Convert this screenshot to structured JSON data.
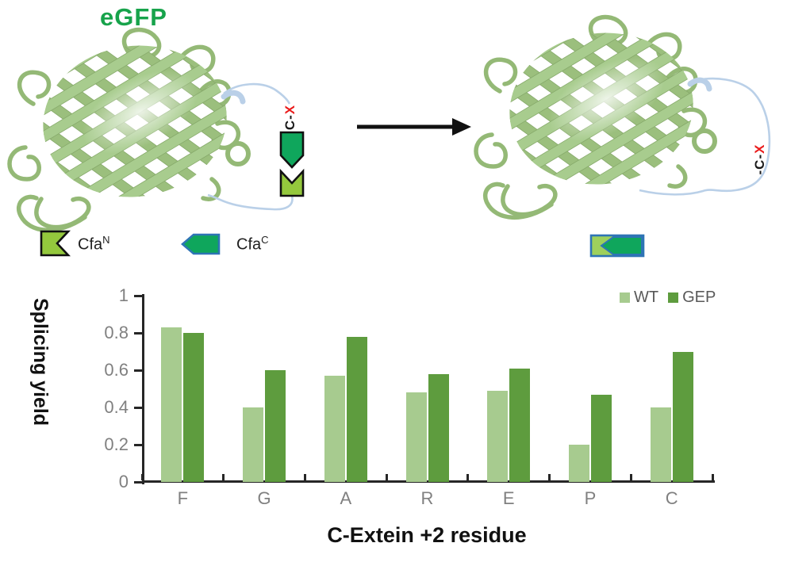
{
  "scheme": {
    "egfp_label": "eGFP",
    "left_terminus": {
      "prefix": "C-",
      "x": "X"
    },
    "right_terminus": {
      "prefix": "-C-",
      "x": "X"
    },
    "intein_legend": [
      {
        "base": "Cfa",
        "sup": "N",
        "swatch_color": "#94c83d"
      },
      {
        "base": "Cfa",
        "sup": "C",
        "swatch_color": "#0fa65c"
      }
    ]
  },
  "chart_data": {
    "type": "bar",
    "categories": [
      "F",
      "G",
      "A",
      "R",
      "E",
      "P",
      "C"
    ],
    "series": [
      {
        "name": "WT",
        "color": "#a7cb8f",
        "values": [
          0.83,
          0.4,
          0.57,
          0.48,
          0.49,
          0.2,
          0.4
        ]
      },
      {
        "name": "GEP",
        "color": "#5e9c3e",
        "values": [
          0.8,
          0.6,
          0.78,
          0.58,
          0.61,
          0.47,
          0.7
        ]
      }
    ],
    "title": "",
    "xlabel": "C-Extein +2 residue",
    "ylabel": "Splicing yield",
    "ylim": [
      0,
      1
    ],
    "yticks": [
      "0",
      "0.2",
      "0.4",
      "0.6",
      "0.8",
      "1"
    ],
    "grid": false,
    "legend_position": "top-right"
  },
  "colors": {
    "ribbon": "#a8cc8e",
    "ribbon_dark": "#9bbf7d",
    "loop_blue": "#bad0e8",
    "egfp_green": "#17a34b",
    "axis": "#262626",
    "tick_label": "#808080",
    "legend_text": "#595959",
    "x_red": "#ea1c1c"
  }
}
